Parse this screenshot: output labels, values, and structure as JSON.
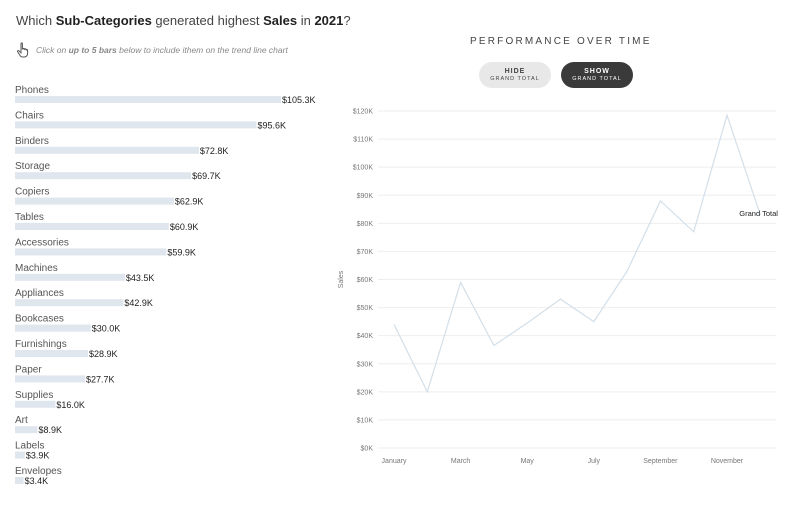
{
  "header": {
    "title_parts": [
      "Which ",
      "Sub-Categories",
      " generated highest ",
      "Sales",
      " in ",
      "2021",
      "?"
    ],
    "hint_parts": [
      "Click on ",
      "up to 5 bars",
      " below to include ithem on the trend line chart"
    ]
  },
  "right_panel": {
    "title": "PERFORMANCE OVER TIME",
    "hide_button": {
      "main": "HIDE",
      "sub": "GRAND TOTAL"
    },
    "show_button": {
      "main": "SHOW",
      "sub": "GRAND TOTAL"
    }
  },
  "colors": {
    "bar": "#dfe6ee",
    "line": "#d3dfe9",
    "active_button": "#3a3a3a",
    "inactive_button": "#e8e8e8"
  },
  "chart_data": [
    {
      "type": "bar",
      "orientation": "horizontal",
      "categories": [
        "Phones",
        "Chairs",
        "Binders",
        "Storage",
        "Copiers",
        "Tables",
        "Accessories",
        "Machines",
        "Appliances",
        "Bookcases",
        "Furnishings",
        "Paper",
        "Supplies",
        "Art",
        "Labels",
        "Envelopes"
      ],
      "values": [
        105.3,
        95.6,
        72.8,
        69.7,
        62.9,
        60.9,
        59.9,
        43.5,
        42.9,
        30.0,
        28.9,
        27.7,
        16.0,
        8.9,
        3.9,
        3.4
      ],
      "value_labels": [
        "$105.3K",
        "$95.6K",
        "$72.8K",
        "$69.7K",
        "$62.9K",
        "$60.9K",
        "$59.9K",
        "$43.5K",
        "$42.9K",
        "$30.0K",
        "$28.9K",
        "$27.7K",
        "$16.0K",
        "$8.9K",
        "$3.9K",
        "$3.4K"
      ],
      "units": "$K"
    },
    {
      "type": "line",
      "title": "PERFORMANCE OVER TIME",
      "xlabel": "",
      "ylabel": "Sales",
      "x": [
        "January",
        "February",
        "March",
        "April",
        "May",
        "June",
        "July",
        "August",
        "September",
        "October",
        "November",
        "December"
      ],
      "x_tick_labels": [
        "January",
        "March",
        "May",
        "July",
        "September",
        "November"
      ],
      "ylim": [
        0,
        120
      ],
      "y_tick_labels": [
        "$0K",
        "$10K",
        "$20K",
        "$30K",
        "$40K",
        "$50K",
        "$60K",
        "$70K",
        "$80K",
        "$90K",
        "$100K",
        "$110K",
        "$120K"
      ],
      "series": [
        {
          "name": "Grand Total",
          "values": [
            44,
            20,
            59,
            36.5,
            44.5,
            53,
            45,
            63,
            88,
            77,
            118.5,
            83
          ]
        }
      ],
      "grid": true
    }
  ]
}
